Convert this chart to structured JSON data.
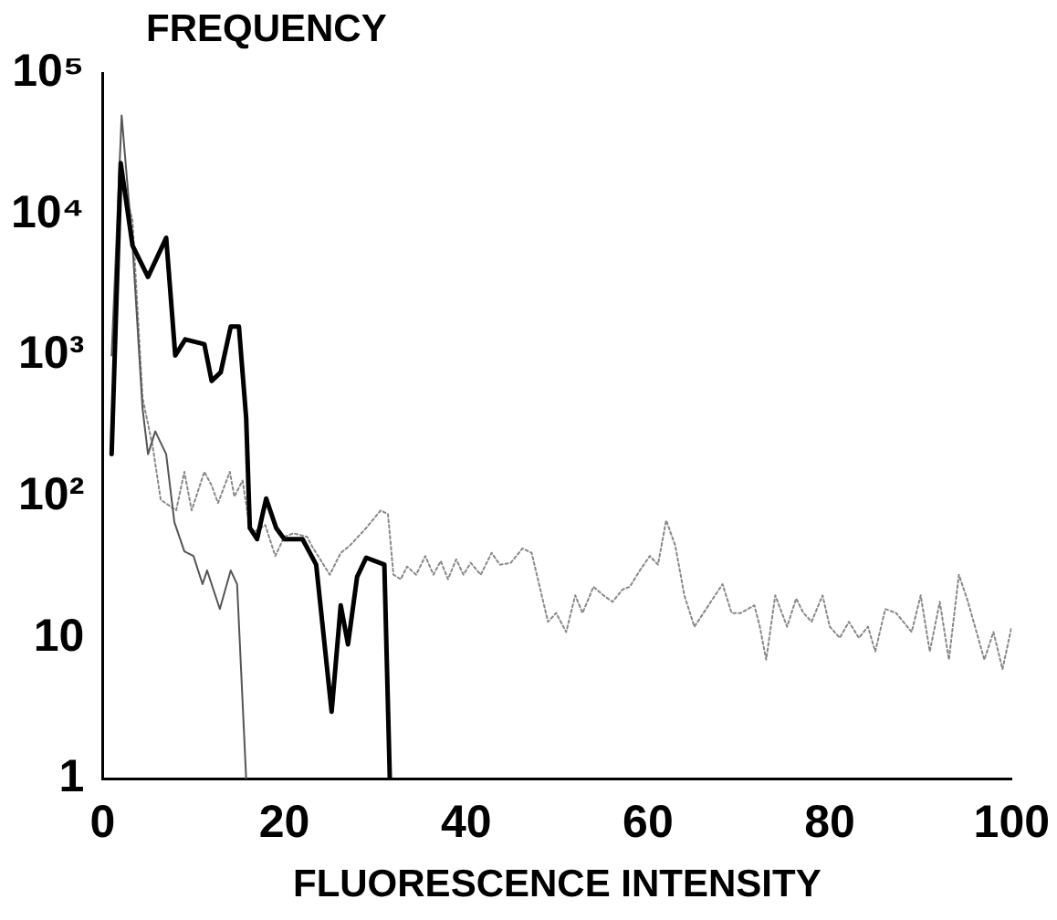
{
  "chart_data": {
    "type": "line",
    "xlabel": "FLUORESCENCE INTENSITY",
    "ylabel": "FREQUENCY",
    "log": "y",
    "grid": false,
    "legend": false,
    "marker": "none",
    "xlim": [
      0,
      100
    ],
    "xticks": [
      0,
      20,
      40,
      60,
      80,
      100
    ],
    "ylim": [
      1,
      100000
    ],
    "yticks": [
      1,
      10,
      {
        "value": 100,
        "label": "10²"
      },
      {
        "value": 1000,
        "label": "10³"
      },
      {
        "value": 10000,
        "label": "10⁴"
      },
      {
        "value": 100000,
        "label": "10⁵"
      }
    ],
    "series": [
      {
        "color": "#000000",
        "line_style": "solid",
        "x": [
          1,
          2,
          3.3,
          5,
          7,
          8,
          9.1,
          11.2,
          12,
          13,
          14.1,
          15,
          15.8,
          16.2,
          17,
          17.5,
          18,
          19.1,
          20,
          22,
          23.5,
          25.2,
          26.2,
          27,
          28,
          29,
          31,
          31.6
        ],
        "values": [
          200,
          23000,
          6000,
          3600,
          6800,
          1000,
          1300,
          1200,
          660,
          760,
          1600,
          1600,
          360,
          60,
          50,
          70,
          97,
          60,
          50,
          50,
          33,
          3,
          17,
          9,
          27,
          37,
          33,
          1
        ]
      },
      {
        "color": "#555555",
        "line_style": "solid",
        "x": [
          1,
          2.1,
          3.3,
          4.4,
          5,
          5.8,
          7,
          7.9,
          9,
          10,
          11,
          11.5,
          12.9,
          14.1,
          14.8,
          15.8
        ],
        "values": [
          1000,
          50000,
          6000,
          420,
          200,
          290,
          200,
          66,
          41,
          38,
          24,
          30,
          16,
          30,
          24,
          1
        ]
      },
      {
        "color": "#888888",
        "line_style": "dotted",
        "x": [
          1,
          2,
          3.3,
          4.4,
          5.5,
          6.4,
          8.1,
          9,
          9.8,
          11.2,
          12,
          12.7,
          14,
          14.5,
          15.4,
          16.2,
          16.8,
          17.9,
          19,
          20,
          21,
          22.5,
          23,
          25,
          26.2,
          27.2,
          29,
          30.6,
          31.4,
          32,
          32.8,
          33.5,
          34.5,
          35.5,
          36.4,
          37.2,
          38,
          38.9,
          39.7,
          40.5,
          41.6,
          42.8,
          43.7,
          44.9,
          46.2,
          47.2,
          49,
          49.9,
          51,
          52,
          52.8,
          54,
          55.1,
          56.1,
          57.2,
          58,
          59.1,
          60.2,
          61.1,
          62,
          63,
          64,
          65.1,
          66.1,
          68.2,
          69.2,
          70.2,
          71.7,
          72.3,
          73,
          74,
          75.3,
          76.3,
          77.1,
          78,
          79.2,
          80,
          81.1,
          82.1,
          83.2,
          84.2,
          85,
          86.1,
          87.3,
          89,
          90,
          91,
          92.1,
          93.1,
          94.2,
          95.2,
          97,
          98,
          99,
          100
        ],
        "values": [
          300,
          20000,
          9000,
          500,
          230,
          95,
          80,
          150,
          80,
          150,
          120,
          90,
          150,
          100,
          130,
          60,
          57,
          63,
          38,
          52,
          55,
          52,
          45,
          28,
          40,
          45,
          60,
          80,
          75,
          28,
          26,
          32,
          28,
          38,
          28,
          35,
          26,
          36,
          28,
          34,
          28,
          40,
          33,
          34,
          43,
          40,
          13,
          15,
          11,
          20,
          15,
          23,
          20,
          18,
          22,
          23,
          30,
          38,
          33,
          68,
          45,
          20,
          12,
          15,
          24,
          15,
          15,
          17,
          12,
          7,
          20,
          12,
          19,
          15,
          13,
          20,
          12,
          10,
          13,
          10,
          12,
          8,
          16,
          15,
          11,
          20,
          8,
          18,
          7,
          28,
          18,
          7,
          11,
          6,
          12
        ]
      }
    ]
  }
}
